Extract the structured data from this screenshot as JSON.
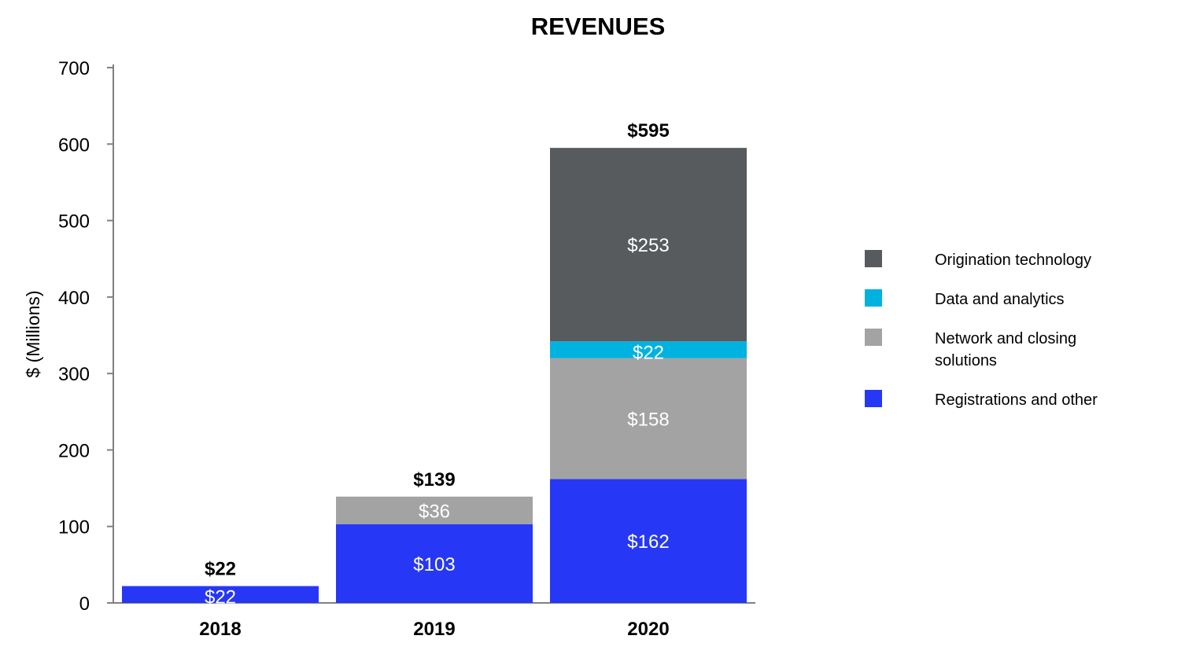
{
  "chart_data": {
    "type": "bar",
    "stacked": true,
    "title": "REVENUES",
    "xlabel": "",
    "ylabel": "$ (Millions)",
    "ylim": [
      0,
      700
    ],
    "yticks": [
      0,
      100,
      200,
      300,
      400,
      500,
      600,
      700
    ],
    "grid": false,
    "legend_position": "right",
    "categories": [
      "2018",
      "2019",
      "2020"
    ],
    "totals": [
      22,
      139,
      595
    ],
    "total_labels": [
      "$22",
      "$139",
      "$595"
    ],
    "series": [
      {
        "name": "Registrations and other",
        "color": "#2638F5",
        "values": [
          22,
          103,
          162
        ],
        "labels": [
          "$22",
          "$103",
          "$162"
        ]
      },
      {
        "name": "Network and closing solutions",
        "color": "#A3A3A3",
        "values": [
          0,
          36,
          158
        ],
        "labels": [
          "",
          "$36",
          "$158"
        ]
      },
      {
        "name": "Data and analytics",
        "color": "#00B2E0",
        "values": [
          0,
          0,
          22
        ],
        "labels": [
          "",
          "",
          "$22"
        ]
      },
      {
        "name": "Origination technology",
        "color": "#575B5E",
        "values": [
          0,
          0,
          253
        ],
        "labels": [
          "",
          "",
          "$253"
        ]
      }
    ],
    "legend": [
      {
        "lines": [
          "Origination technology"
        ],
        "color": "#575B5E"
      },
      {
        "lines": [
          "Data and analytics"
        ],
        "color": "#00B2E0"
      },
      {
        "lines": [
          "Network and closing",
          "solutions"
        ],
        "color": "#A3A3A3"
      },
      {
        "lines": [
          "Registrations and other"
        ],
        "color": "#2638F5"
      }
    ]
  }
}
